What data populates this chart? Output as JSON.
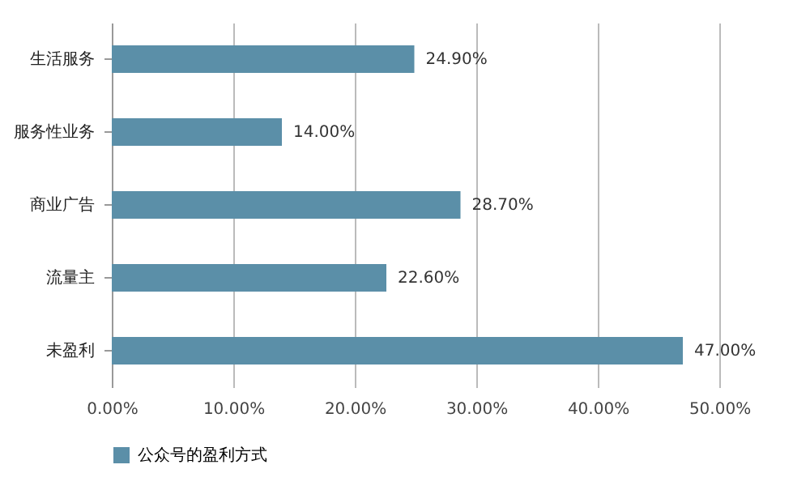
{
  "chart_data": {
    "type": "bar",
    "orientation": "horizontal",
    "categories": [
      "生活服务",
      "服务性业务",
      "商业广告",
      "流量主",
      "未盈利"
    ],
    "series": [
      {
        "name": "公众号的盈利方式",
        "color": "#5b8fa8",
        "values": [
          24.9,
          14.0,
          28.7,
          22.6,
          47.0
        ],
        "value_labels": [
          "24.90%",
          "14.00%",
          "28.70%",
          "22.60%",
          "47.00%"
        ]
      }
    ],
    "xlim": [
      0,
      50
    ],
    "xticks": [
      {
        "value": 0,
        "label": "0.00%"
      },
      {
        "value": 10,
        "label": "10.00%"
      },
      {
        "value": 20,
        "label": "20.00%"
      },
      {
        "value": 30,
        "label": "30.00%"
      },
      {
        "value": 40,
        "label": "40.00%"
      },
      {
        "value": 50,
        "label": "50.00%"
      }
    ],
    "grid": "x",
    "legend": "bottom"
  }
}
